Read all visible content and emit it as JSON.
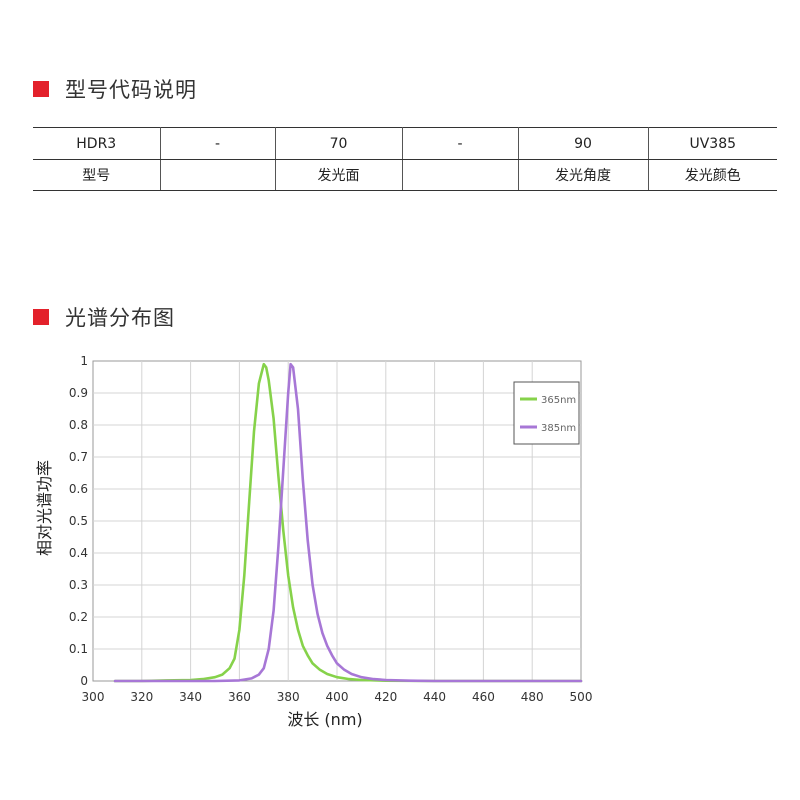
{
  "section_model": {
    "title": "型号代码说明"
  },
  "model_table": {
    "codes": [
      "HDR3",
      "-",
      "70",
      "-",
      "90",
      "UV385"
    ],
    "labels": [
      "型号",
      "",
      "发光面",
      "",
      "发光角度",
      "发光颜色"
    ]
  },
  "section_spectrum": {
    "title": "光谱分布图"
  },
  "colors": {
    "accent": "#e3212b",
    "series_365": "#86d24a",
    "series_385": "#a777d6"
  },
  "chart_data": {
    "type": "line",
    "xlabel": "波长 (nm)",
    "ylabel": "相对光谱功率",
    "xlim": [
      300,
      500
    ],
    "ylim": [
      0,
      1
    ],
    "xticks": [
      "300",
      "320",
      "340",
      "360",
      "380",
      "400",
      "420",
      "440",
      "460",
      "480",
      "500"
    ],
    "yticks": [
      "0",
      "0.1",
      "0.2",
      "0.3",
      "0.4",
      "0.5",
      "0.6",
      "0.7",
      "0.8",
      "0.9",
      "1"
    ],
    "grid": true,
    "legend_position": "top-right",
    "series": [
      {
        "name": "365nm",
        "color": "#86d24a",
        "x": [
          309,
          320,
          330,
          340,
          345,
          350,
          353,
          356,
          358,
          360,
          362,
          364,
          366,
          368,
          370,
          371,
          372,
          374,
          376,
          378,
          380,
          382,
          384,
          386,
          388,
          390,
          393,
          396,
          400,
          405,
          410,
          420,
          440,
          460,
          480,
          500
        ],
        "y": [
          0,
          0,
          0.002,
          0.003,
          0.006,
          0.012,
          0.02,
          0.04,
          0.07,
          0.16,
          0.33,
          0.56,
          0.78,
          0.93,
          0.99,
          0.98,
          0.94,
          0.82,
          0.64,
          0.47,
          0.33,
          0.23,
          0.16,
          0.11,
          0.08,
          0.055,
          0.035,
          0.022,
          0.012,
          0.006,
          0.003,
          0.001,
          0,
          0,
          0,
          0
        ]
      },
      {
        "name": "385nm",
        "color": "#a777d6",
        "x": [
          309,
          330,
          350,
          360,
          365,
          368,
          370,
          372,
          374,
          376,
          378,
          380,
          381,
          382,
          384,
          386,
          388,
          390,
          392,
          394,
          396,
          398,
          400,
          403,
          406,
          410,
          415,
          420,
          430,
          440,
          460,
          480,
          500
        ],
        "y": [
          0,
          0,
          0,
          0.002,
          0.008,
          0.02,
          0.04,
          0.1,
          0.22,
          0.42,
          0.66,
          0.9,
          0.99,
          0.98,
          0.85,
          0.63,
          0.44,
          0.3,
          0.21,
          0.15,
          0.11,
          0.08,
          0.055,
          0.035,
          0.022,
          0.012,
          0.006,
          0.003,
          0.001,
          0,
          0,
          0,
          0
        ]
      }
    ]
  }
}
